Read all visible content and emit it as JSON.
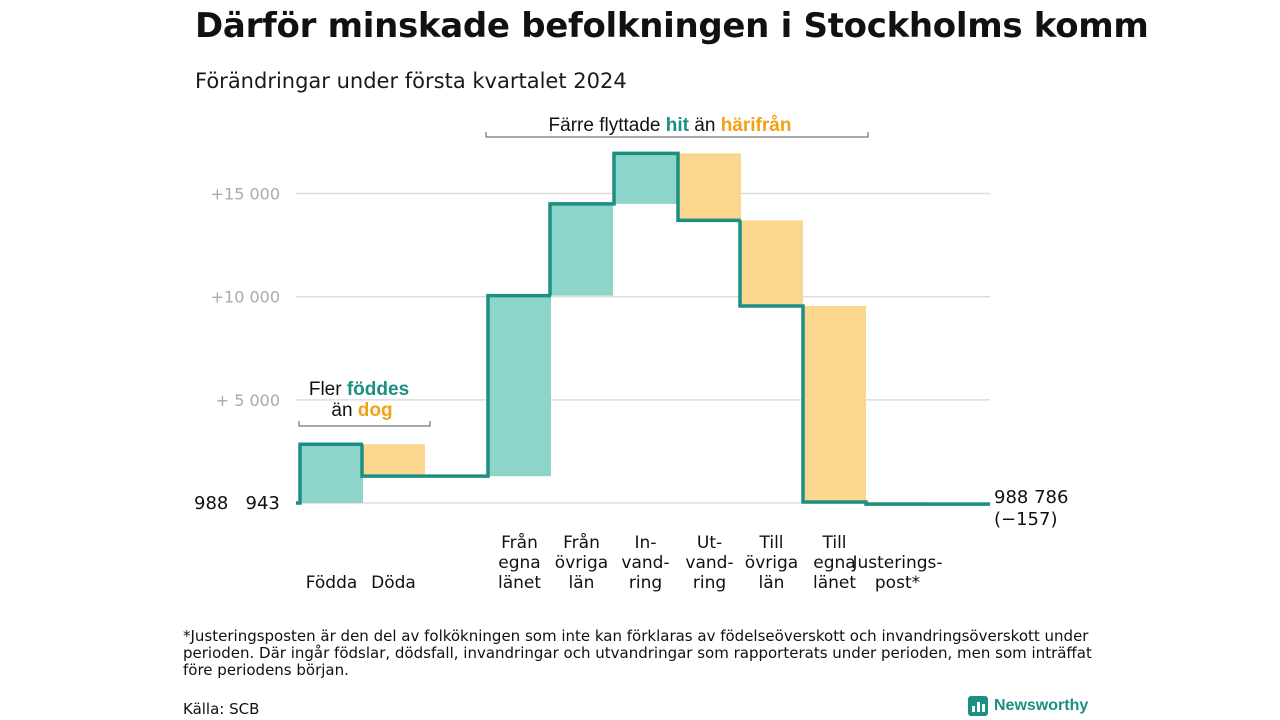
{
  "header": {
    "title": "Därför minskade befolkningen i Stockholms komm",
    "subtitle": "Förändringar under första kvartalet 2024"
  },
  "annotations": {
    "births": {
      "line1": "Fler",
      "line1_highlight": "föddes",
      "line2": "än",
      "line2_highlight": "dog"
    },
    "migration": {
      "text": "Färre flyttade",
      "highlight_in": "hit",
      "middle": "än",
      "highlight_out": "härifrån"
    }
  },
  "labels": {
    "start_value": "988   943",
    "end_value": "988 786",
    "end_change": "(−157)"
  },
  "footer": {
    "footnote": "*Justeringsposten är den del av folkökningen som inte kan förklaras av födelseöverskott och invandringsöverskott under perioden. Där ingår födslar, dödsfall, invandringar och utvandringar som rapporterats under perioden, men som inträffat före periodens början.",
    "source": "Källa: SCB",
    "brand": "Newsworthy"
  },
  "colors": {
    "increase": "#8dd5cb",
    "decrease": "#fbd68e",
    "line": "#1c8f82",
    "accent_in": "#1c8f82",
    "accent_out": "#f3a114",
    "grid": "#dddddd",
    "tick": "#aaaaaa"
  },
  "chart_data": {
    "type": "waterfall",
    "title": "Därför minskade befolkningen i Stockholms komm",
    "subtitle": "Förändringar under första kvartalet 2024",
    "unit": "change in population relative to start",
    "start": 988943,
    "end": 988786,
    "total_change": -157,
    "yticks": [
      {
        "value": 5000,
        "label": "+  5 000"
      },
      {
        "value": 10000,
        "label": "+10   000"
      },
      {
        "value": 15000,
        "label": "+15   000"
      }
    ],
    "ylim": [
      0,
      17000
    ],
    "grid": true,
    "steps": [
      {
        "label": [
          "Födda"
        ],
        "value": 2850,
        "direction": "increase"
      },
      {
        "label": [
          "Döda"
        ],
        "value": -1550,
        "direction": "decrease"
      },
      {
        "label": [
          "Från",
          "egna",
          "länet"
        ],
        "value": 8750,
        "direction": "increase"
      },
      {
        "label": [
          "Från",
          "övriga",
          "län"
        ],
        "value": 4450,
        "direction": "increase"
      },
      {
        "label": [
          "In-",
          "vand-",
          "ring"
        ],
        "value": 2450,
        "direction": "increase"
      },
      {
        "label": [
          "Ut-",
          "vand-",
          "ring"
        ],
        "value": -3250,
        "direction": "decrease"
      },
      {
        "label": [
          "Till",
          "övriga",
          "län"
        ],
        "value": -4150,
        "direction": "decrease"
      },
      {
        "label": [
          "Till",
          "egna",
          "länet"
        ],
        "value": -9500,
        "direction": "decrease"
      },
      {
        "label": [
          "Justerings-",
          "post*"
        ],
        "value": -107,
        "direction": "decrease"
      }
    ]
  }
}
